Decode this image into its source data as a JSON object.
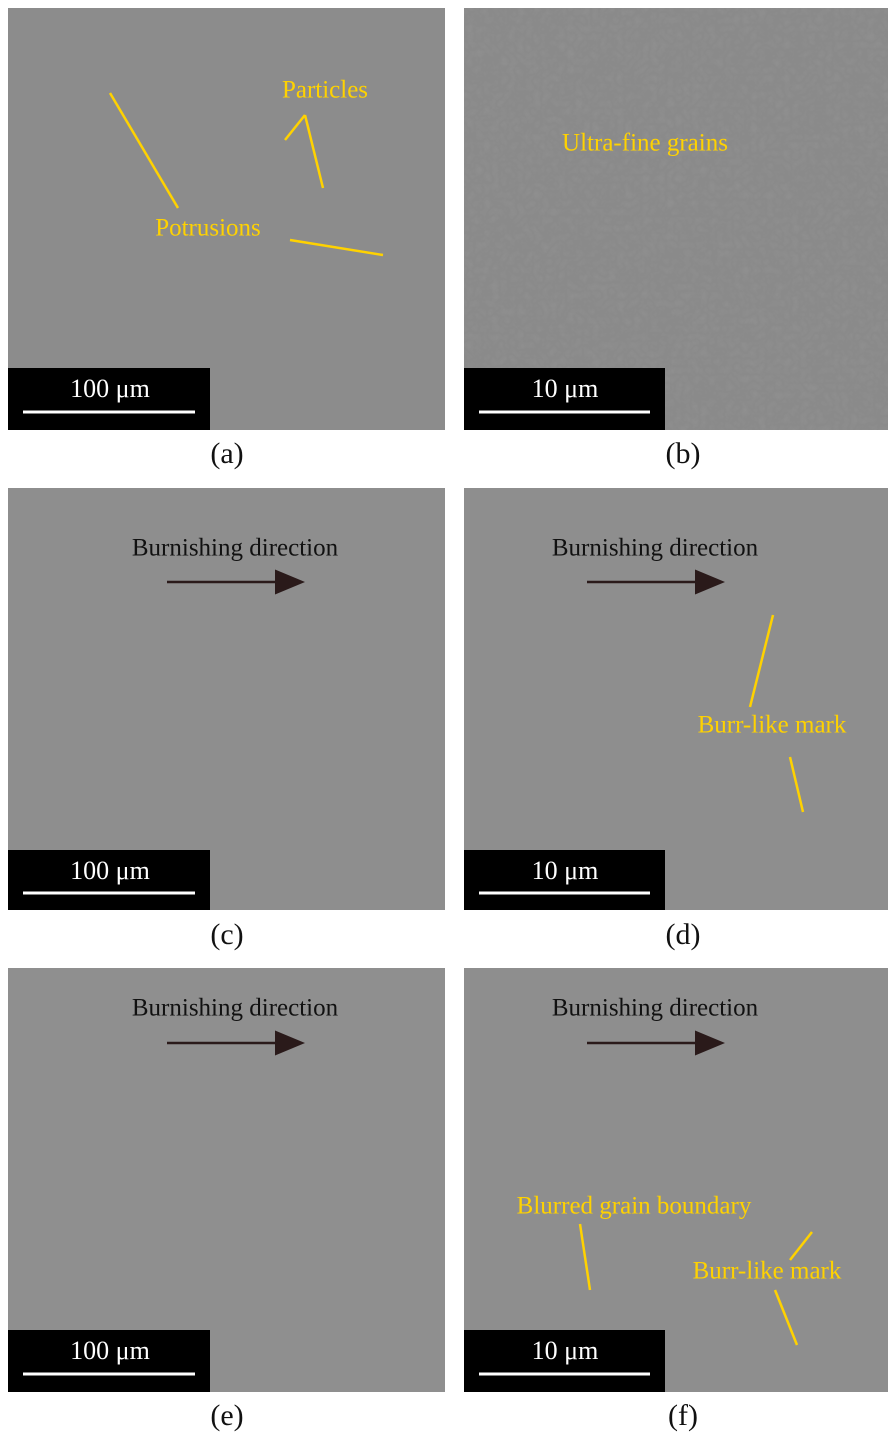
{
  "panels": [
    {
      "label": "(a)",
      "scale_bar": "100 μm",
      "annotations": [
        "Particles",
        "Potrusions"
      ]
    },
    {
      "label": "(b)",
      "scale_bar": "10 μm",
      "annotations": [
        "Ultra-fine grains"
      ]
    },
    {
      "label": "(c)",
      "scale_bar": "100 μm",
      "annotations": [
        "Burnishing direction"
      ]
    },
    {
      "label": "(d)",
      "scale_bar": "10 μm",
      "annotations": [
        "Burnishing direction",
        "Burr-like mark"
      ]
    },
    {
      "label": "(e)",
      "scale_bar": "100 μm",
      "annotations": [
        "Burnishing direction"
      ]
    },
    {
      "label": "(f)",
      "scale_bar": "10 μm",
      "annotations": [
        "Burnishing direction",
        "Blurred grain boundary",
        "Burr-like mark"
      ]
    }
  ]
}
